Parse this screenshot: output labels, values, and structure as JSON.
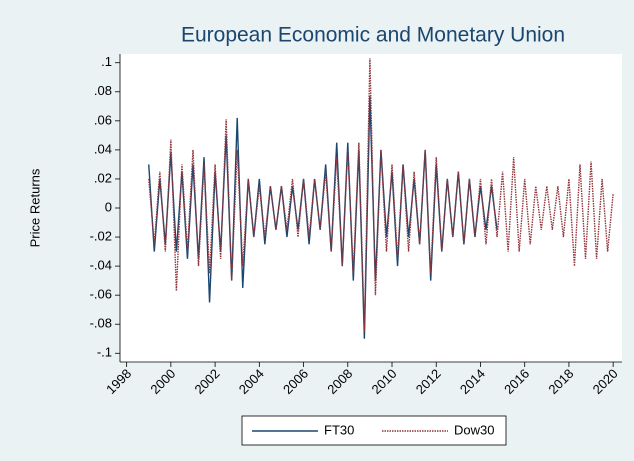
{
  "chart_data": {
    "type": "line",
    "title": "European Economic and Monetary Union",
    "y_label": "Price Returns",
    "x": [
      1999,
      1999.25,
      1999.5,
      1999.75,
      2000,
      2000.25,
      2000.5,
      2000.75,
      2001,
      2001.25,
      2001.5,
      2001.75,
      2002,
      2002.25,
      2002.5,
      2002.75,
      2003,
      2003.25,
      2003.5,
      2003.75,
      2004,
      2004.25,
      2004.5,
      2004.75,
      2005,
      2005.25,
      2005.5,
      2005.75,
      2006,
      2006.25,
      2006.5,
      2006.75,
      2007,
      2007.25,
      2007.5,
      2007.75,
      2008,
      2008.25,
      2008.5,
      2008.75,
      2009,
      2009.25,
      2009.5,
      2009.75,
      2010,
      2010.25,
      2010.5,
      2010.75,
      2011,
      2011.25,
      2011.5,
      2011.75,
      2012,
      2012.25,
      2012.5,
      2012.75,
      2013,
      2013.25,
      2013.5,
      2013.75,
      2014,
      2014.25,
      2014.5,
      2014.75,
      2015,
      2015.25,
      2015.5,
      2015.75,
      2016,
      2016.25,
      2016.5,
      2016.75,
      2017,
      2017.25,
      2017.5,
      2017.75,
      2018,
      2018.25,
      2018.5,
      2018.75,
      2019,
      2019.25,
      2019.5,
      2019.75,
      2020
    ],
    "series": [
      {
        "name": "FT30",
        "color": "#1a476f",
        "dashed": false,
        "values": [
          0.03,
          -0.03,
          0.02,
          -0.025,
          0.038,
          -0.03,
          0.025,
          -0.035,
          0.03,
          -0.035,
          0.035,
          -0.065,
          0.025,
          -0.03,
          0.05,
          -0.05,
          0.062,
          -0.055,
          0.02,
          -0.02,
          0.02,
          -0.025,
          0.015,
          -0.015,
          0.015,
          -0.02,
          0.015,
          -0.015,
          0.02,
          -0.025,
          0.02,
          -0.015,
          0.03,
          -0.03,
          0.045,
          -0.04,
          0.045,
          -0.05,
          0.04,
          -0.09,
          0.077,
          -0.05,
          0.04,
          -0.02,
          0.025,
          -0.04,
          0.03,
          -0.02,
          0.02,
          -0.025,
          0.04,
          -0.05,
          0.03,
          -0.03,
          0.02,
          -0.02,
          0.025,
          -0.025,
          0.02,
          -0.02,
          0.015,
          -0.015,
          0.015,
          -0.015,
          null,
          null,
          null,
          null,
          null,
          null,
          null,
          null,
          null,
          null,
          null,
          null,
          null,
          null,
          null,
          null,
          null,
          null,
          null,
          null,
          null
        ]
      },
      {
        "name": "Dow30",
        "color": "#90353b",
        "dashed": true,
        "values": [
          0.02,
          -0.025,
          0.025,
          -0.03,
          0.047,
          -0.057,
          0.03,
          -0.03,
          0.04,
          -0.04,
          0.03,
          -0.045,
          0.03,
          -0.035,
          0.061,
          -0.05,
          0.04,
          -0.04,
          0.02,
          -0.02,
          0.015,
          -0.02,
          0.015,
          -0.015,
          0.015,
          -0.015,
          0.02,
          -0.02,
          0.02,
          -0.02,
          0.02,
          -0.015,
          0.025,
          -0.03,
          0.035,
          -0.04,
          0.04,
          -0.045,
          0.045,
          -0.085,
          0.103,
          -0.06,
          0.04,
          -0.03,
          0.03,
          -0.035,
          0.03,
          -0.03,
          0.025,
          -0.025,
          0.04,
          -0.045,
          0.035,
          -0.03,
          0.02,
          -0.02,
          0.025,
          -0.025,
          0.02,
          -0.02,
          0.02,
          -0.025,
          0.02,
          -0.02,
          0.025,
          -0.03,
          0.035,
          -0.03,
          0.02,
          -0.025,
          0.015,
          -0.015,
          0.015,
          -0.015,
          0.015,
          -0.02,
          0.02,
          -0.04,
          0.03,
          -0.035,
          0.032,
          -0.035,
          0.02,
          -0.03,
          0.01
        ]
      }
    ],
    "xlim": [
      1997.7,
      2020.4
    ],
    "xticks": [
      1998,
      2000,
      2002,
      2004,
      2006,
      2008,
      2010,
      2012,
      2014,
      2016,
      2018,
      2020
    ],
    "ylim": [
      -0.106,
      0.106
    ],
    "yticks": [
      {
        "value": 0.1,
        "label": ".1"
      },
      {
        "value": 0.08,
        "label": ".08"
      },
      {
        "value": 0.06,
        "label": ".06"
      },
      {
        "value": 0.04,
        "label": ".04"
      },
      {
        "value": 0.02,
        "label": ".02"
      },
      0,
      {
        "value": -0.02,
        "label": "-.02"
      },
      {
        "value": -0.04,
        "label": "-.04"
      },
      {
        "value": -0.06,
        "label": "-.06"
      },
      {
        "value": -0.08,
        "label": "-.08"
      },
      {
        "value": -0.1,
        "label": "-.1"
      }
    ],
    "grid": false
  }
}
